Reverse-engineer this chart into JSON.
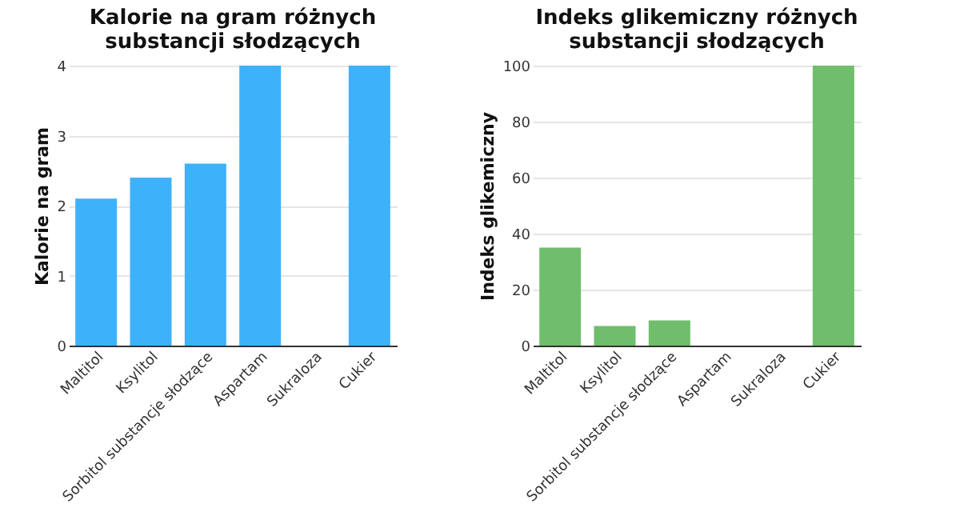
{
  "chart_data": [
    {
      "type": "bar",
      "title": "Kalorie na gram różnych substancji słodzących",
      "ylabel": "Kalorie na gram",
      "categories": [
        "Maltitol",
        "Ksylitol",
        "Sorbitol substancje słodzące",
        "Aspartam",
        "Sukraloza",
        "Cukier"
      ],
      "values": [
        2.1,
        2.4,
        2.6,
        4,
        0,
        4
      ],
      "color": "#3db2fb",
      "ylim": [
        0,
        4
      ],
      "yticks": [
        0,
        1,
        2,
        3,
        4
      ],
      "grid": "y"
    },
    {
      "type": "bar",
      "title": "Indeks glikemiczny różnych substancji słodzących",
      "ylabel": "Indeks glikemiczny",
      "categories": [
        "Maltitol",
        "Ksylitol",
        "Sorbitol substancje słodzące",
        "Aspartam",
        "Sukraloza",
        "Cukier"
      ],
      "values": [
        35,
        7,
        9,
        0,
        0,
        100
      ],
      "color": "#6fbe6b",
      "ylim": [
        0,
        100
      ],
      "yticks": [
        0,
        20,
        40,
        60,
        80,
        100
      ],
      "grid": "y"
    }
  ]
}
